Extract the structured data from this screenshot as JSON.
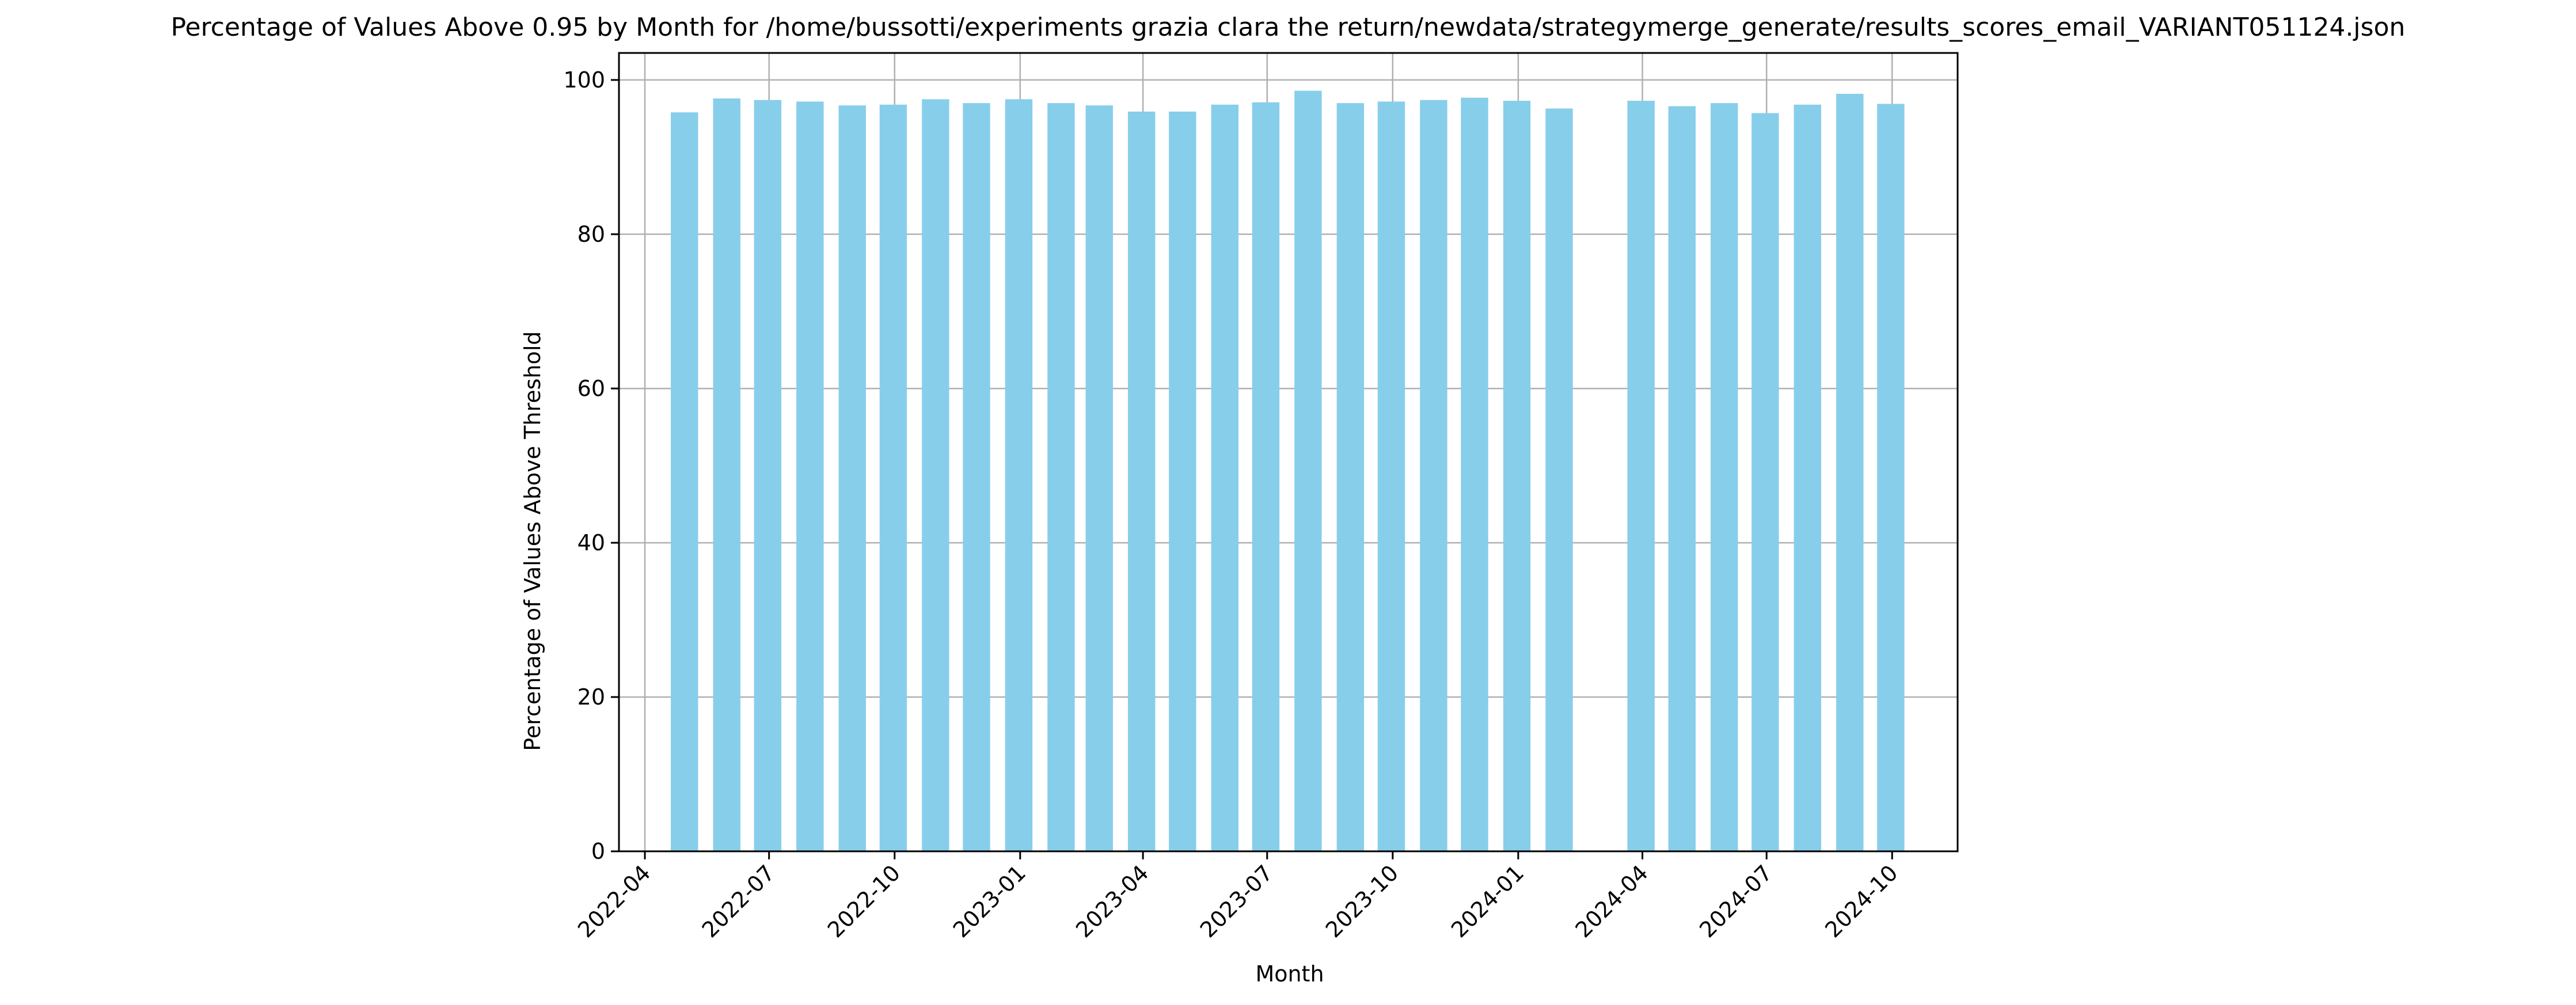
{
  "chart_data": {
    "type": "bar",
    "title": "Percentage of Values Above 0.95 by Month for /home/bussotti/experiments grazia clara the return/newdata/strategymerge_generate/results_scores_email_VARIANT051124.json",
    "xlabel": "Month",
    "ylabel": "Percentage of Values Above Threshold",
    "ylim": [
      0,
      103.5
    ],
    "xlim": [
      "2022-03-13",
      "2024-11-18"
    ],
    "grid": true,
    "bar_color": "#87CEEB",
    "x_tick_labels": [
      "2022-04",
      "2022-07",
      "2022-10",
      "2023-01",
      "2023-04",
      "2023-07",
      "2023-10",
      "2024-01",
      "2024-04",
      "2024-07",
      "2024-10"
    ],
    "y_ticks": [
      0,
      20,
      40,
      60,
      80,
      100
    ],
    "categories": [
      "2022-04-30",
      "2022-05-31",
      "2022-06-30",
      "2022-07-31",
      "2022-08-31",
      "2022-09-30",
      "2022-10-31",
      "2022-11-30",
      "2022-12-31",
      "2023-01-31",
      "2023-02-28",
      "2023-03-31",
      "2023-04-30",
      "2023-05-31",
      "2023-06-30",
      "2023-07-31",
      "2023-08-31",
      "2023-09-30",
      "2023-10-31",
      "2023-11-30",
      "2023-12-31",
      "2024-01-31",
      "2024-03-31",
      "2024-04-30",
      "2024-05-31",
      "2024-06-30",
      "2024-07-31",
      "2024-08-31",
      "2024-09-30"
    ],
    "values": [
      95.8,
      97.6,
      97.4,
      97.2,
      96.7,
      96.8,
      97.5,
      97.0,
      97.5,
      97.0,
      96.7,
      95.9,
      95.9,
      96.8,
      97.1,
      98.6,
      97.0,
      97.2,
      97.4,
      97.7,
      97.3,
      96.3,
      97.3,
      96.6,
      97.0,
      95.7,
      96.8,
      98.2,
      96.9
    ]
  }
}
